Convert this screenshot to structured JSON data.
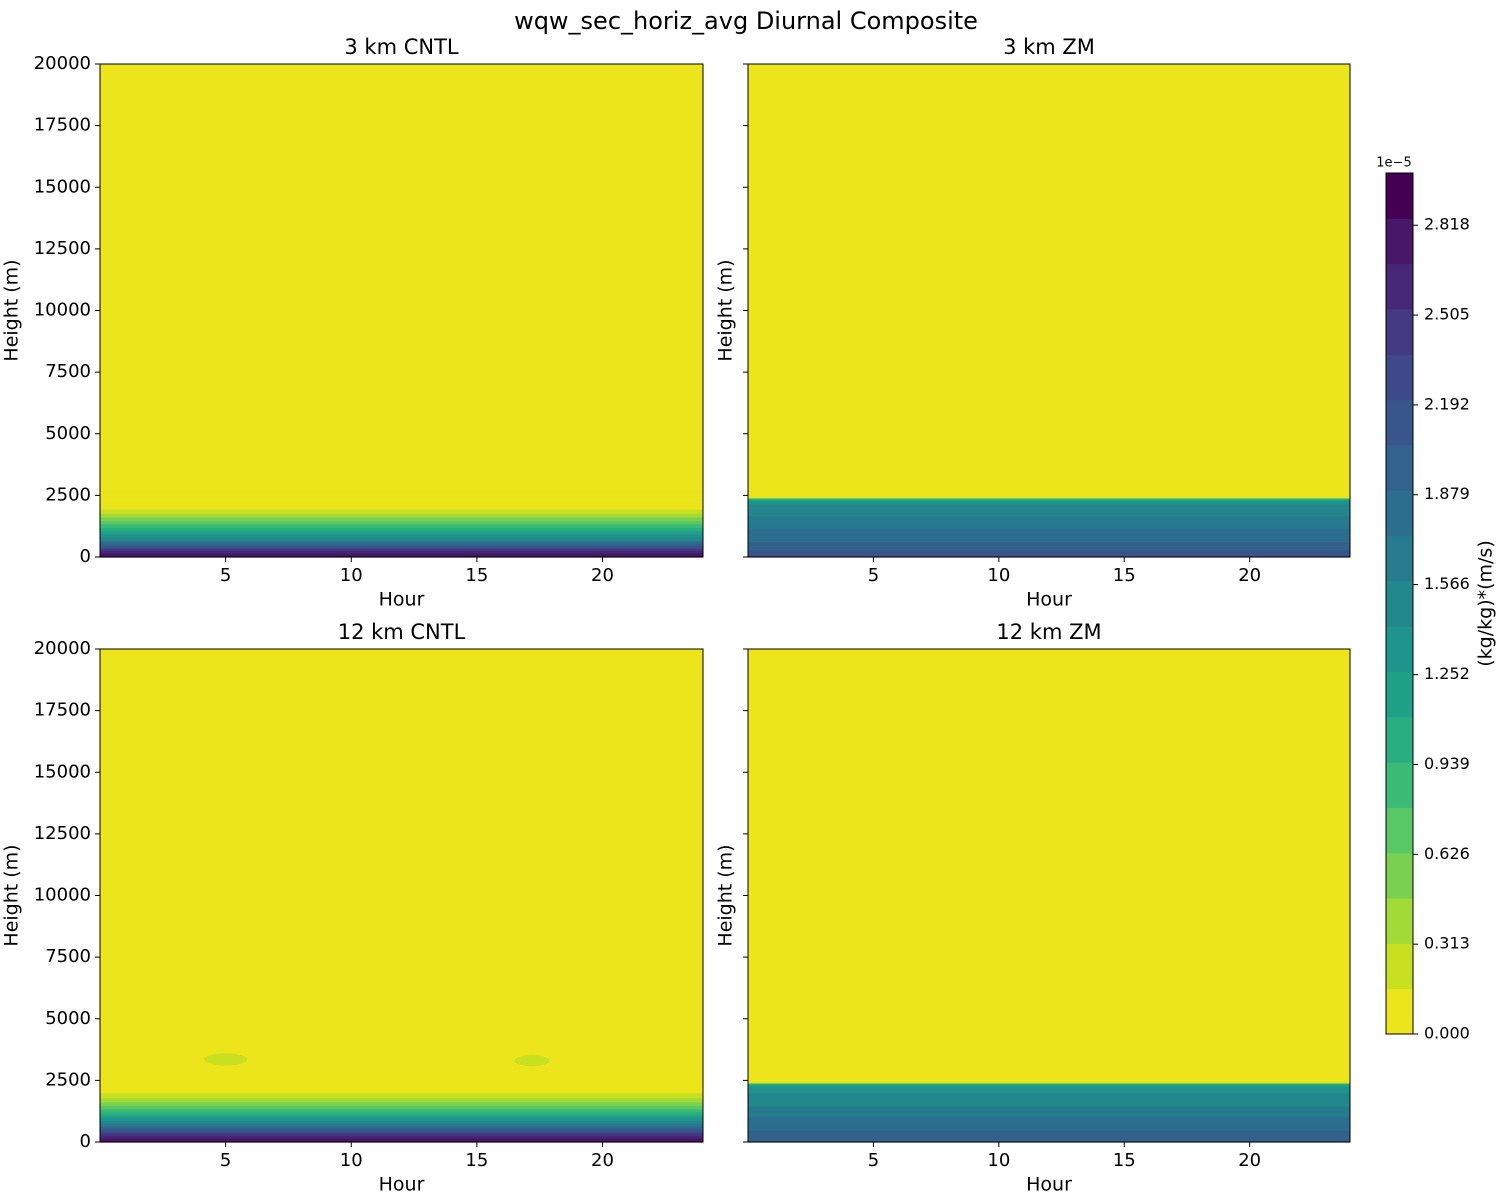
{
  "figure": {
    "title": "wqw_sec_horiz_avg Diurnal Composite"
  },
  "colorbar": {
    "label": "(kg/kg)*(m/s)",
    "offset_text": "1e−5",
    "scale_exponent": -5,
    "vmin": 0.0,
    "vmax": 3.0,
    "levels": 19,
    "tick_values": [
      0.0,
      0.313,
      0.626,
      0.939,
      1.252,
      1.566,
      1.879,
      2.192,
      2.505,
      2.818
    ],
    "tick_labels": [
      "0.000",
      "0.313",
      "0.626",
      "0.939",
      "1.252",
      "1.566",
      "1.879",
      "2.192",
      "2.505",
      "2.818"
    ],
    "colors": [
      "#ece51b",
      "#c8e020",
      "#a2da37",
      "#7ad151",
      "#58c765",
      "#3bbb75",
      "#28ae80",
      "#1fa187",
      "#1f948c",
      "#23888e",
      "#277b8e",
      "#2c6e8e",
      "#32628d",
      "#38568c",
      "#3e4989",
      "#443983",
      "#472878",
      "#481769",
      "#440154"
    ]
  },
  "chart_data": [
    {
      "type": "heatmap",
      "title": "3 km CNTL",
      "xlabel": "Hour",
      "ylabel": "Height (m)",
      "xlim": [
        0,
        24
      ],
      "ylim": [
        0,
        20000
      ],
      "xticks": [
        5,
        10,
        15,
        20
      ],
      "yticks": [
        0,
        2500,
        5000,
        7500,
        10000,
        12500,
        15000,
        17500,
        20000
      ],
      "show_yticklabels": true,
      "profile": {
        "height_m": [
          0,
          250,
          500,
          750,
          1000,
          1250,
          1500,
          1750,
          2000,
          2500,
          20000
        ],
        "value_e5": [
          2.9,
          2.6,
          2.0,
          1.5,
          1.2,
          0.9,
          0.6,
          0.35,
          0.1,
          0.0,
          0.0
        ]
      },
      "blobs": []
    },
    {
      "type": "heatmap",
      "title": "3 km ZM",
      "xlabel": "Hour",
      "ylabel": "Height (m)",
      "xlim": [
        0,
        24
      ],
      "ylim": [
        0,
        20000
      ],
      "xticks": [
        5,
        10,
        15,
        20
      ],
      "yticks": [
        0,
        2500,
        5000,
        7500,
        10000,
        12500,
        15000,
        17500,
        20000
      ],
      "show_yticklabels": false,
      "profile": {
        "height_m": [
          0,
          300,
          600,
          1000,
          1400,
          1800,
          2200,
          2350,
          2450,
          20000
        ],
        "value_e5": [
          2.2,
          2.05,
          1.9,
          1.8,
          1.65,
          1.55,
          1.4,
          1.2,
          0.0,
          0.0
        ]
      },
      "blobs": []
    },
    {
      "type": "heatmap",
      "title": "12 km CNTL",
      "xlabel": "Hour",
      "ylabel": "Height (m)",
      "xlim": [
        0,
        24
      ],
      "ylim": [
        0,
        20000
      ],
      "xticks": [
        5,
        10,
        15,
        20
      ],
      "yticks": [
        0,
        2500,
        5000,
        7500,
        10000,
        12500,
        15000,
        17500,
        20000
      ],
      "show_yticklabels": true,
      "profile": {
        "height_m": [
          0,
          250,
          500,
          750,
          1000,
          1250,
          1500,
          1750,
          2000,
          2200,
          20000
        ],
        "value_e5": [
          2.9,
          2.6,
          2.1,
          1.6,
          1.25,
          0.9,
          0.6,
          0.35,
          0.15,
          0.0,
          0.0
        ]
      },
      "blobs": [
        {
          "hour": 5.0,
          "height_m": 3350,
          "width_h": 1.7,
          "height_span_m": 500,
          "value_e5": 0.2
        },
        {
          "hour": 17.2,
          "height_m": 3300,
          "width_h": 1.4,
          "height_span_m": 450,
          "value_e5": 0.2
        }
      ]
    },
    {
      "type": "heatmap",
      "title": "12 km ZM",
      "xlabel": "Hour",
      "ylabel": "Height (m)",
      "xlim": [
        0,
        24
      ],
      "ylim": [
        0,
        20000
      ],
      "xticks": [
        5,
        10,
        15,
        20
      ],
      "yticks": [
        0,
        2500,
        5000,
        7500,
        10000,
        12500,
        15000,
        17500,
        20000
      ],
      "show_yticklabels": false,
      "profile": {
        "height_m": [
          0,
          300,
          600,
          1000,
          1400,
          1800,
          2200,
          2350,
          2450,
          20000
        ],
        "value_e5": [
          2.0,
          1.95,
          1.85,
          1.75,
          1.6,
          1.5,
          1.35,
          1.1,
          0.0,
          0.0
        ]
      },
      "blobs": []
    }
  ]
}
